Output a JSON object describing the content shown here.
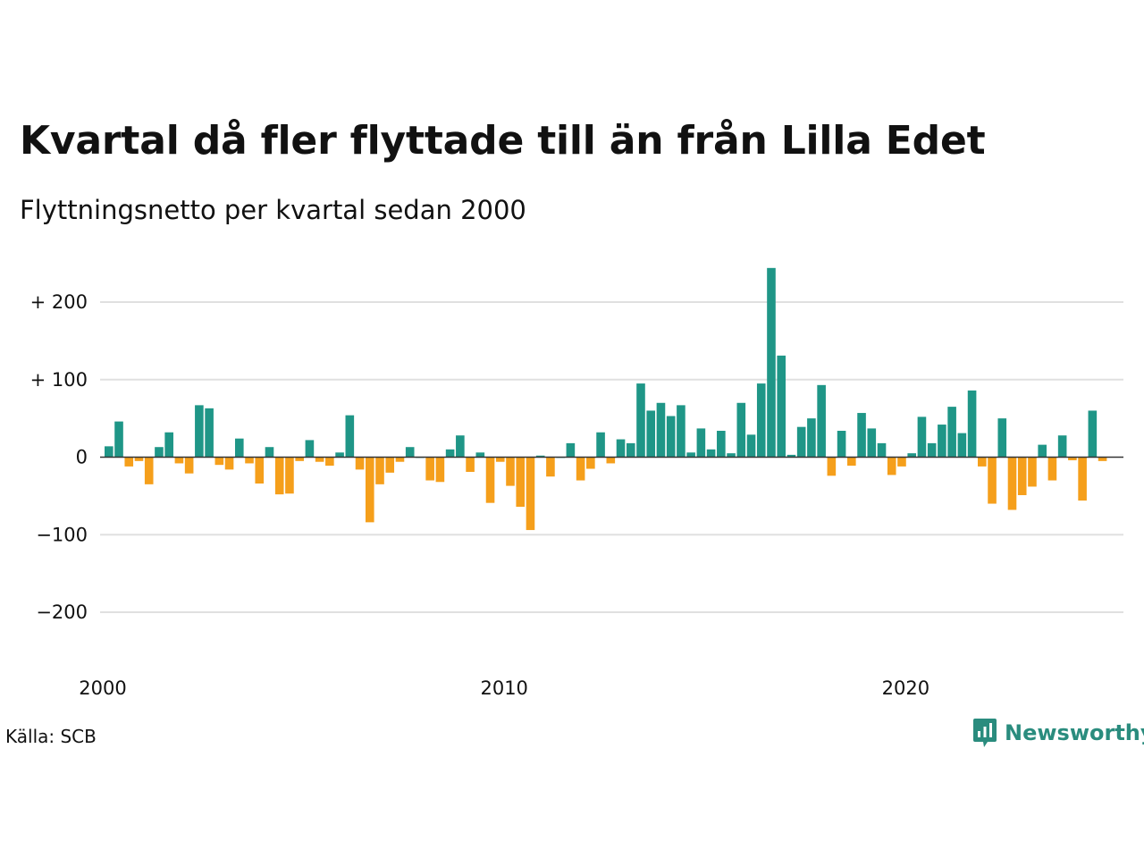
{
  "title": "Kvartal då fler flyttade till än från Lilla Edet",
  "subtitle": "Flyttningsnetto per kvartal sedan 2000",
  "source": "Källa: SCB",
  "brand": {
    "name": "Newsworthy",
    "icon": "chart-speech-bubble-icon"
  },
  "colors": {
    "positive": "#1f9687",
    "negative": "#f59f1b",
    "grid": "#e0e0e0",
    "axis": "#333333",
    "brand": "#2a8c7e"
  },
  "chart_data": {
    "type": "bar",
    "title": "Kvartal då fler flyttade till än från Lilla Edet",
    "subtitle": "Flyttningsnetto per kvartal sedan 2000",
    "xlabel": "",
    "ylabel": "",
    "ylim": [
      -250,
      250
    ],
    "y_ticks": [
      {
        "value": 200,
        "label": "+ 200"
      },
      {
        "value": 100,
        "label": "+ 100"
      },
      {
        "value": 0,
        "label": "0"
      },
      {
        "value": -100,
        "label": "−100"
      },
      {
        "value": -200,
        "label": "−200"
      }
    ],
    "x_ticks": [
      {
        "year": 2000,
        "label": "2000"
      },
      {
        "year": 2010,
        "label": "2010"
      },
      {
        "year": 2020,
        "label": "2020"
      }
    ],
    "start": "2000 Q1",
    "grid": true,
    "legend": "none",
    "series": [
      {
        "values": [
          14,
          46,
          -12,
          -5,
          -35,
          13,
          32,
          -8,
          -21,
          67,
          63,
          -10,
          -16,
          24,
          -8,
          -34,
          13,
          -48,
          -47,
          -5,
          22,
          -6,
          -11,
          6,
          54,
          -16,
          -84,
          -35,
          -20,
          -6,
          13,
          0,
          -30,
          -32,
          10,
          28,
          -19,
          6,
          -59,
          -6,
          -37,
          -64,
          -94,
          2,
          -25,
          0,
          18,
          -30,
          -15,
          32,
          -8,
          23,
          18,
          95,
          60,
          70,
          53,
          67,
          6,
          37,
          10,
          34,
          5,
          70,
          29,
          95,
          244,
          131,
          3,
          39,
          50,
          93,
          -24,
          34,
          -11,
          57,
          37,
          18,
          -23,
          -12,
          5,
          52,
          18,
          42,
          65,
          31,
          86,
          -12,
          -60,
          50,
          -68,
          -49,
          -38,
          16,
          -30,
          28,
          -4,
          -56,
          60,
          -5
        ]
      }
    ]
  }
}
